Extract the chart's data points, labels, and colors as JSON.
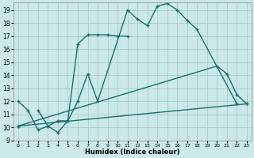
{
  "xlabel": "Humidex (Indice chaleur)",
  "background_color": "#cce8e8",
  "grid_color": "#aacccc",
  "line_color": "#1a7070",
  "xlim": [
    -0.5,
    23.5
  ],
  "ylim": [
    9,
    19.6
  ],
  "xticks": [
    0,
    1,
    2,
    3,
    4,
    5,
    6,
    7,
    8,
    9,
    10,
    11,
    12,
    13,
    14,
    15,
    16,
    17,
    18,
    19,
    20,
    21,
    22,
    23
  ],
  "yticks": [
    9,
    10,
    11,
    12,
    13,
    14,
    15,
    16,
    17,
    18,
    19
  ],
  "line1_x": [
    0,
    1,
    2,
    3,
    4,
    5,
    6,
    7,
    8,
    11,
    12,
    13,
    14,
    15,
    16,
    17,
    18,
    22
  ],
  "line1_y": [
    12,
    11.3,
    9.8,
    10.1,
    9.6,
    10.5,
    12.0,
    14.1,
    12.0,
    19.0,
    18.3,
    17.8,
    19.3,
    19.5,
    19.0,
    18.2,
    17.5,
    11.8
  ],
  "line2_x": [
    2,
    3,
    4,
    5,
    6,
    7,
    8,
    9,
    10,
    11
  ],
  "line2_y": [
    11.3,
    10.1,
    10.5,
    10.5,
    16.4,
    17.1,
    17.1,
    17.1,
    17.0,
    17.0
  ],
  "line3_x": [
    0,
    23
  ],
  "line3_y": [
    10.1,
    11.8
  ],
  "line4_x": [
    0,
    20,
    21,
    22,
    23
  ],
  "line4_y": [
    10.1,
    14.7,
    14.1,
    12.5,
    11.8
  ]
}
